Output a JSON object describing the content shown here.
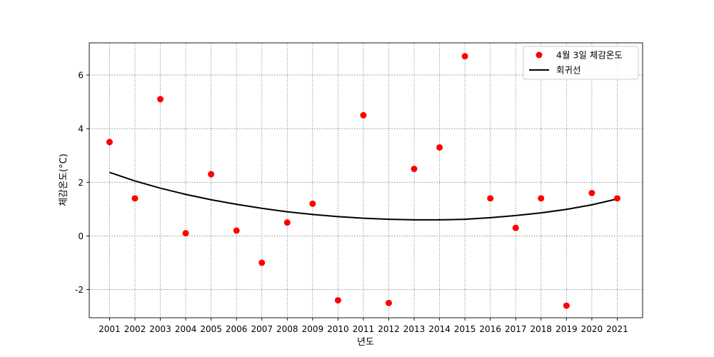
{
  "chart_data": {
    "type": "scatter",
    "title": "",
    "xlabel": "년도",
    "ylabel": "체감온도(°C)",
    "x": [
      2001,
      2002,
      2003,
      2004,
      2005,
      2006,
      2007,
      2008,
      2009,
      2010,
      2011,
      2012,
      2013,
      2014,
      2015,
      2016,
      2017,
      2018,
      2019,
      2020,
      2021
    ],
    "x_tick_labels": [
      "2001",
      "2002",
      "2003",
      "2004",
      "2005",
      "2006",
      "2007",
      "2008",
      "2009",
      "2010",
      "2011",
      "2012",
      "2013",
      "2014",
      "2015",
      "2016",
      "2017",
      "2018",
      "2019",
      "2020",
      "2021"
    ],
    "y_ticks": [
      -2,
      0,
      2,
      4,
      6
    ],
    "y_tick_labels": [
      "-2",
      "0",
      "2",
      "4",
      "6"
    ],
    "xlim": [
      2000.2,
      2022.0
    ],
    "ylim": [
      -3.05,
      7.2
    ],
    "grid": true,
    "legend_position": "top-right",
    "series": [
      {
        "name": "4월 3일 체감온도",
        "kind": "scatter",
        "color": "#ff0000",
        "values": [
          3.5,
          1.4,
          5.1,
          0.1,
          2.3,
          0.2,
          -1.0,
          0.5,
          1.2,
          -2.4,
          4.5,
          -2.5,
          2.5,
          3.3,
          6.7,
          1.4,
          0.3,
          1.4,
          -2.6,
          1.6,
          1.4
        ]
      },
      {
        "name": "회귀선",
        "kind": "line",
        "color": "#000000",
        "values": [
          2.37,
          2.05,
          1.78,
          1.55,
          1.35,
          1.18,
          1.03,
          0.9,
          0.8,
          0.72,
          0.66,
          0.62,
          0.6,
          0.6,
          0.62,
          0.68,
          0.76,
          0.86,
          0.99,
          1.16,
          1.38
        ]
      }
    ]
  }
}
